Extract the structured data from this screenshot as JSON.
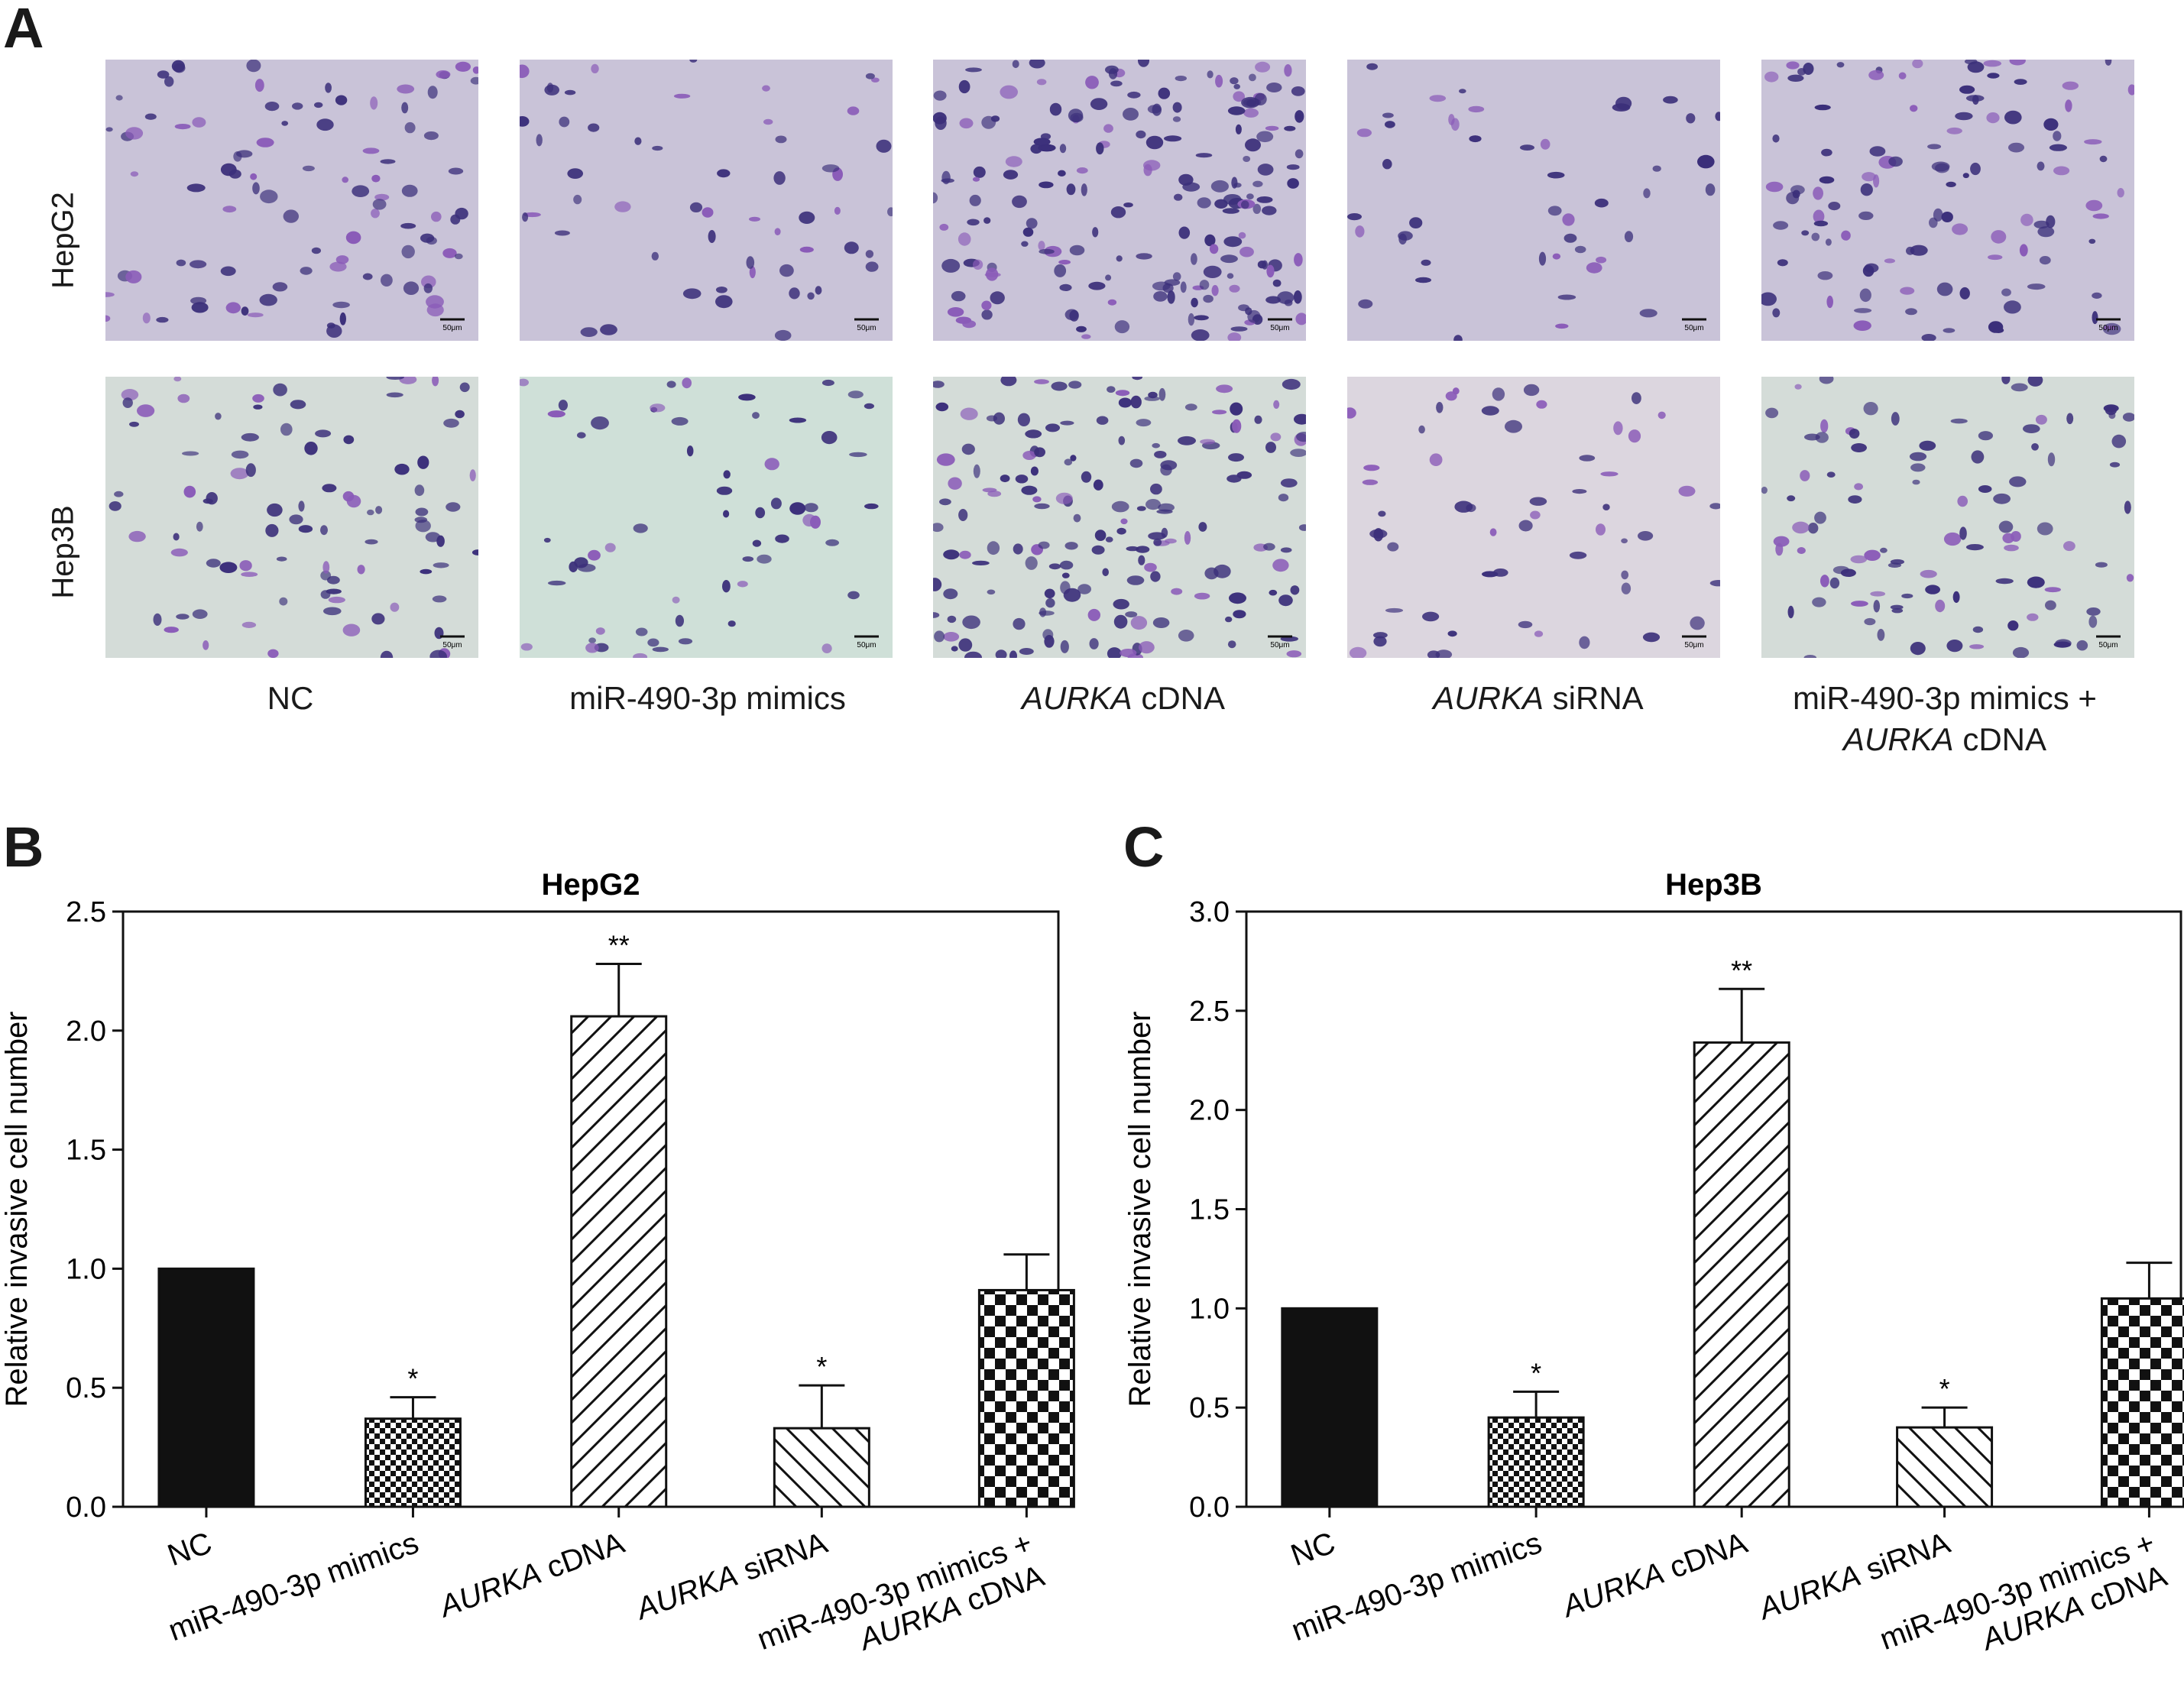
{
  "panel_a": {
    "letter": "A",
    "rows": [
      "HepG2",
      "Hep3B"
    ],
    "columns": [
      {
        "label": "NC",
        "italic_part": "",
        "rest": "NC",
        "line2_italic": "",
        "line2_rest": ""
      },
      {
        "label": "miR-490-3p mimics",
        "italic_part": "",
        "rest": "miR-490-3p mimics",
        "line2_italic": "",
        "line2_rest": ""
      },
      {
        "label": "AURKA cDNA",
        "italic_part": "AURKA",
        "rest": " cDNA",
        "line2_italic": "",
        "line2_rest": ""
      },
      {
        "label": "AURKA siRNA",
        "italic_part": "AURKA",
        "rest": " siRNA",
        "line2_italic": "",
        "line2_rest": ""
      },
      {
        "label": "miR-490-3p mimics + AURKA cDNA",
        "italic_part": "",
        "rest": "miR-490-3p mimics +",
        "line2_italic": "AURKA",
        "line2_rest": " cDNA"
      }
    ],
    "scale_bar": "50μm",
    "colors": {
      "stain_dark": "#3b2f7a",
      "stain_light": "#8a5bb8",
      "background_hepg2": "#c9c3d8",
      "background_hep3b": "#d4dcd8"
    }
  },
  "chart_data": [
    {
      "type": "bar",
      "panel": "B",
      "title": "HepG2",
      "ylabel": "Relative invasive cell number",
      "xlabel": "",
      "categories": [
        "NC",
        "miR-490-3p mimics",
        "AURKA cDNA",
        "AURKA siRNA",
        "miR-490-3p mimics + AURKA cDNA"
      ],
      "values": [
        1.0,
        0.37,
        2.06,
        0.33,
        0.91
      ],
      "errors": [
        0,
        0.09,
        0.22,
        0.18,
        0.15
      ],
      "significance": [
        "",
        "*",
        "**",
        "*",
        ""
      ],
      "patterns": [
        "solid",
        "fine-checker",
        "diag-up",
        "diag-down",
        "coarse-checker"
      ],
      "ylim": [
        0,
        2.5
      ],
      "yticks": [
        "0.0",
        "0.5",
        "1.0",
        "1.5",
        "2.0",
        "2.5"
      ],
      "grid": false
    },
    {
      "type": "bar",
      "panel": "C",
      "title": "Hep3B",
      "ylabel": "Relative invasive cell number",
      "xlabel": "",
      "categories": [
        "NC",
        "miR-490-3p mimics",
        "AURKA cDNA",
        "AURKA siRNA",
        "miR-490-3p mimics + AURKA cDNA"
      ],
      "values": [
        1.0,
        0.45,
        2.34,
        0.4,
        1.05
      ],
      "errors": [
        0,
        0.13,
        0.27,
        0.1,
        0.18
      ],
      "significance": [
        "",
        "*",
        "**",
        "*",
        ""
      ],
      "patterns": [
        "solid",
        "fine-checker",
        "diag-up",
        "diag-down",
        "coarse-checker"
      ],
      "ylim": [
        0,
        3.0
      ],
      "yticks": [
        "0.0",
        "0.5",
        "1.0",
        "1.5",
        "2.0",
        "2.5",
        "3.0"
      ],
      "grid": false
    }
  ],
  "x_tick_labels": [
    {
      "plain_before": "NC",
      "italic": "",
      "plain_after": "",
      "line2_italic": "",
      "line2_after": ""
    },
    {
      "plain_before": "miR-490-3p mimics",
      "italic": "",
      "plain_after": "",
      "line2_italic": "",
      "line2_after": ""
    },
    {
      "plain_before": "",
      "italic": "AURKA",
      "plain_after": " cDNA",
      "line2_italic": "",
      "line2_after": ""
    },
    {
      "plain_before": "",
      "italic": "AURKA",
      "plain_after": " siRNA",
      "line2_italic": "",
      "line2_after": ""
    },
    {
      "plain_before": "miR-490-3p mimics +",
      "italic": "",
      "plain_after": "",
      "line2_italic": "AURKA",
      "line2_after": " cDNA"
    }
  ]
}
